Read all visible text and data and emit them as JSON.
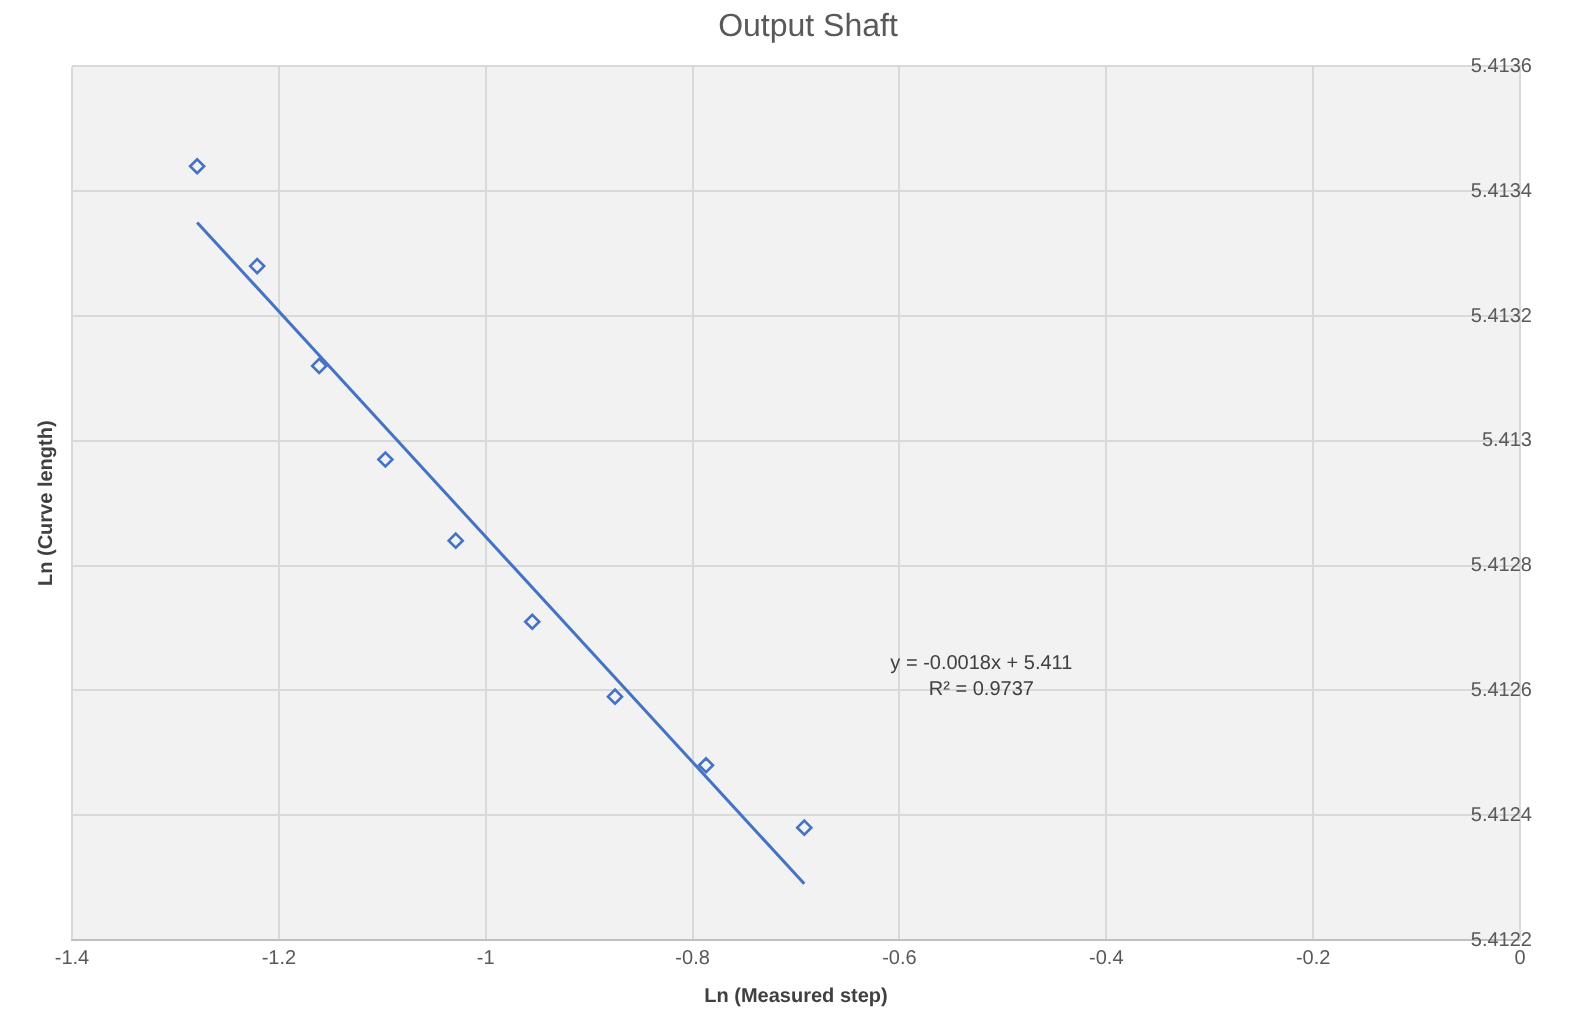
{
  "chart_data": {
    "type": "scatter",
    "title": "Output Shaft",
    "xlabel": "Ln (Measured step)",
    "ylabel": "Ln (Curve length)",
    "series": [
      {
        "color": "#4472c4",
        "marker": "diamond",
        "x": [
          -1.279,
          -1.221,
          -1.161,
          -1.097,
          -1.029,
          -0.955,
          -0.875,
          -0.787,
          -0.692
        ],
        "values": [
          5.41344,
          5.41328,
          5.41312,
          5.41297,
          5.41284,
          5.41271,
          5.41259,
          5.41248,
          5.41238
        ]
      },
      {
        "type": "line",
        "color": "#4472c4",
        "marker": "none",
        "line_style": "solid",
        "x": [
          -1.279,
          -0.692
        ],
        "values": [
          5.41335,
          5.41229
        ]
      }
    ],
    "xlim": [
      -1.4,
      0
    ],
    "xticks": [
      -1.4,
      -1.2,
      -1,
      -0.8,
      -0.6,
      -0.4,
      -0.2,
      0
    ],
    "ylim": [
      5.4122,
      5.4136
    ],
    "yticks": [
      5.4122,
      5.4124,
      5.4126,
      5.4128,
      5.413,
      5.4132,
      5.4134,
      5.4136
    ],
    "annotations": [
      "y = -0.0018x + 5.411",
      "R² = 0.9737"
    ],
    "grid": true,
    "legend": false
  }
}
